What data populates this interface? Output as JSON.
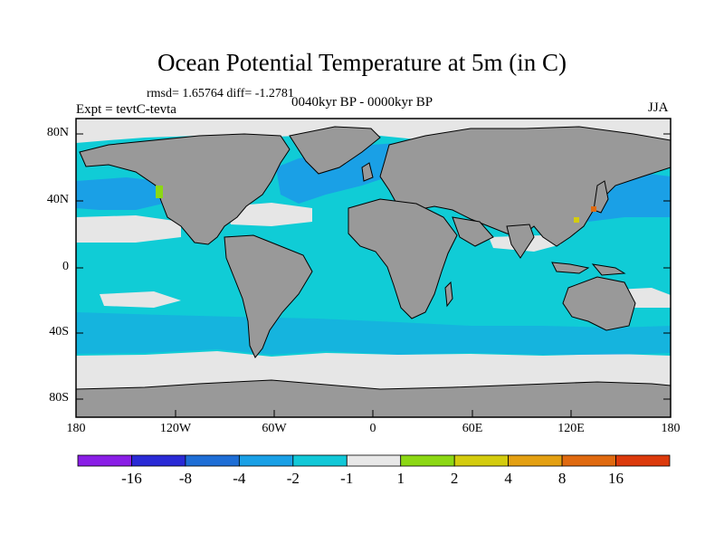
{
  "title": "Ocean Potential Temperature at 5m (in C)",
  "stats_line": "rmsd= 1.65764 diff= -1.2781",
  "expt_line": "Expt = tevtC-tevta",
  "period_line": "0040kyr BP - 0000kyr BP",
  "season": "JJA",
  "lat_labels": [
    "80N",
    "40N",
    "0",
    "40S",
    "80S"
  ],
  "lon_labels": [
    "180",
    "120W",
    "60W",
    "0",
    "60E",
    "120E",
    "180"
  ],
  "colorbar": {
    "labels": [
      "-16",
      "-8",
      "-4",
      "-2",
      "-1",
      "1",
      "2",
      "4",
      "8",
      "16"
    ],
    "colors": [
      "#8a1ee6",
      "#2a2ad6",
      "#1e6ed6",
      "#1aa0e6",
      "#12c8d8",
      "#e8e8e8",
      "#8cd814",
      "#d4cc0e",
      "#e4a012",
      "#e06a10",
      "#dc3a0c"
    ]
  },
  "colors": {
    "land": "#999999",
    "ocean_main": "#10ccd6",
    "ocean_dark": "#1aa0e6",
    "ocean_light": "#e6e6e6"
  }
}
